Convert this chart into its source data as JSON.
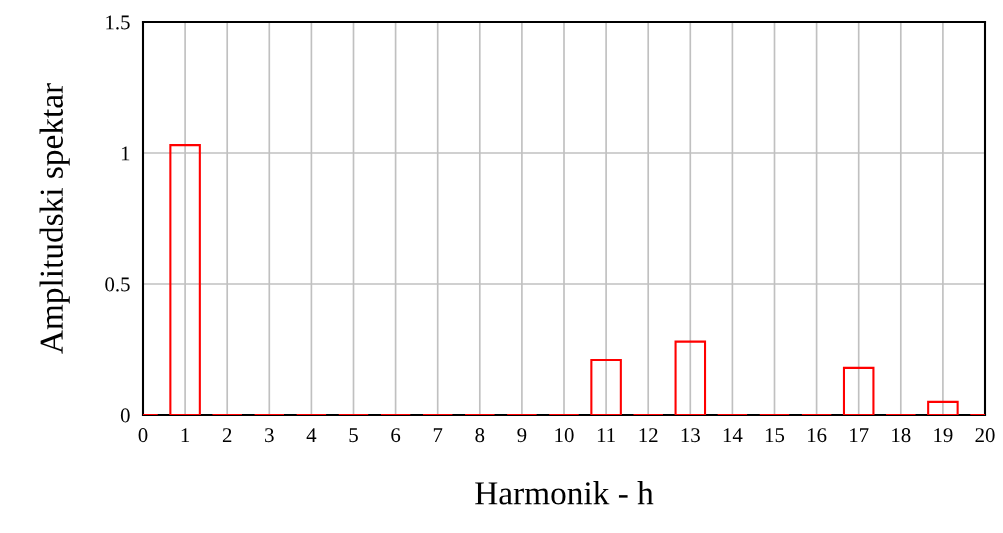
{
  "chart_data": {
    "type": "bar",
    "xlabel": "Harmonik - h",
    "ylabel": "Amplitudski spektar",
    "x": [
      0,
      1,
      2,
      3,
      4,
      5,
      6,
      7,
      8,
      9,
      10,
      11,
      12,
      13,
      14,
      15,
      16,
      17,
      18,
      19,
      20
    ],
    "values": [
      0,
      1.03,
      0,
      0,
      0,
      0,
      0,
      0,
      0,
      0,
      0,
      0.21,
      0,
      0.28,
      0,
      0,
      0,
      0.18,
      0,
      0.05,
      0
    ],
    "color": "#ff0000",
    "xlim": [
      0,
      20
    ],
    "xticks": [
      0,
      1,
      2,
      3,
      4,
      5,
      6,
      7,
      8,
      9,
      10,
      11,
      12,
      13,
      14,
      15,
      16,
      17,
      18,
      19,
      20
    ],
    "ylim": [
      0,
      1.5
    ],
    "yticks": [
      0,
      0.5,
      1,
      1.5
    ],
    "grid": true
  }
}
